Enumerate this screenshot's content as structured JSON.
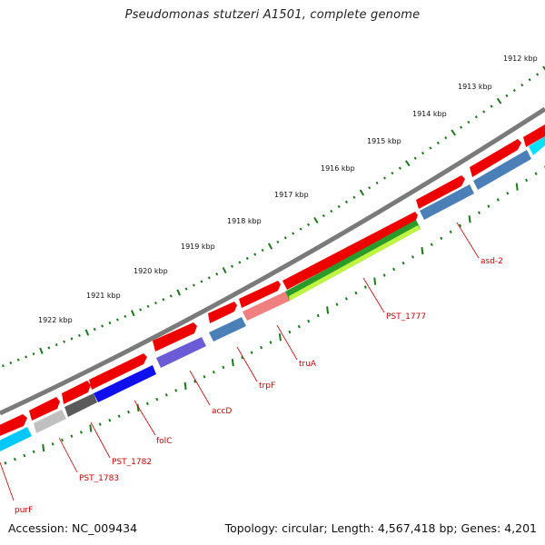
{
  "title": "Pseudomonas stutzeri A1501, complete genome",
  "footer": {
    "accession": "Accession: NC_009434",
    "topology": "Topology: circular; Length: 4,567,418 bp; Genes: 4,201"
  },
  "colors": {
    "backbone": "#7b7b7b",
    "forward_gene": "#ee0000",
    "ticks": "#1a7a1a",
    "label_text": "#cc0000"
  },
  "scale_labels": [
    "1912 kbp",
    "1913 kbp",
    "1914 kbp",
    "1915 kbp",
    "1916 kbp",
    "1917 kbp",
    "1918 kbp",
    "1919 kbp",
    "1920 kbp",
    "1921 kbp",
    "1922 kbp"
  ],
  "gene_labels": [
    "asd-2",
    "PST_1777",
    "truA",
    "trpF",
    "accD",
    "folC",
    "PST_1782",
    "PST_1783",
    "purF"
  ],
  "reverse_gene_colors": [
    "#00c8ff",
    "#c0c0c0",
    "#5a5a5a",
    "#1010ee",
    "#6b5bd6",
    "#4a7fb8",
    "#f08080",
    "#2a9a2a",
    "#4a7fb8",
    "#4a7fb8",
    "#00e0ff"
  ]
}
